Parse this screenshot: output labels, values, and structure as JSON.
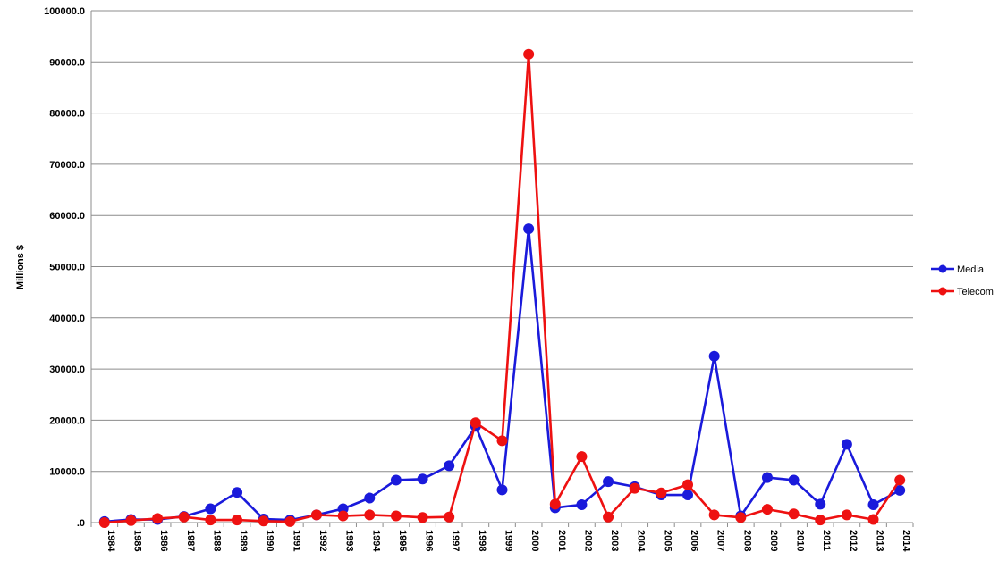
{
  "chart_data": {
    "type": "line",
    "title": "",
    "xlabel": "",
    "ylabel": "Millions $",
    "ylim": [
      0,
      100000
    ],
    "yticks": [
      ".0",
      "10000.0",
      "20000.0",
      "30000.0",
      "40000.0",
      "50000.0",
      "60000.0",
      "70000.0",
      "80000.0",
      "90000.0",
      "100000.0"
    ],
    "grid": true,
    "legend": "right",
    "categories": [
      "1984",
      "1985",
      "1986",
      "1987",
      "1988",
      "1989",
      "1990",
      "1991",
      "1992",
      "1993",
      "1994",
      "1995",
      "1996",
      "1997",
      "1998",
      "1999",
      "2000",
      "2001",
      "2002",
      "2003",
      "2004",
      "2005",
      "2006",
      "2007",
      "2008",
      "2009",
      "2010",
      "2011",
      "2012",
      "2013",
      "2014"
    ],
    "series": [
      {
        "name": "Media",
        "color": "#1a1adb",
        "values": [
          200,
          600,
          600,
          1200,
          2700,
          5900,
          700,
          500,
          1500,
          2700,
          4800,
          8300,
          8500,
          11100,
          18800,
          6400,
          57400,
          2900,
          3500,
          8000,
          7000,
          5400,
          5400,
          32500,
          1300,
          8800,
          8300,
          3600,
          15300,
          3500,
          6300
        ]
      },
      {
        "name": "Telecom",
        "color": "#ee1111",
        "values": [
          0,
          400,
          800,
          1100,
          500,
          500,
          300,
          200,
          1500,
          1300,
          1500,
          1300,
          1000,
          1100,
          19500,
          16000,
          91500,
          3600,
          12900,
          1100,
          6700,
          5800,
          7400,
          1500,
          1000,
          2600,
          1700,
          500,
          1500,
          600,
          8300
        ]
      }
    ]
  }
}
